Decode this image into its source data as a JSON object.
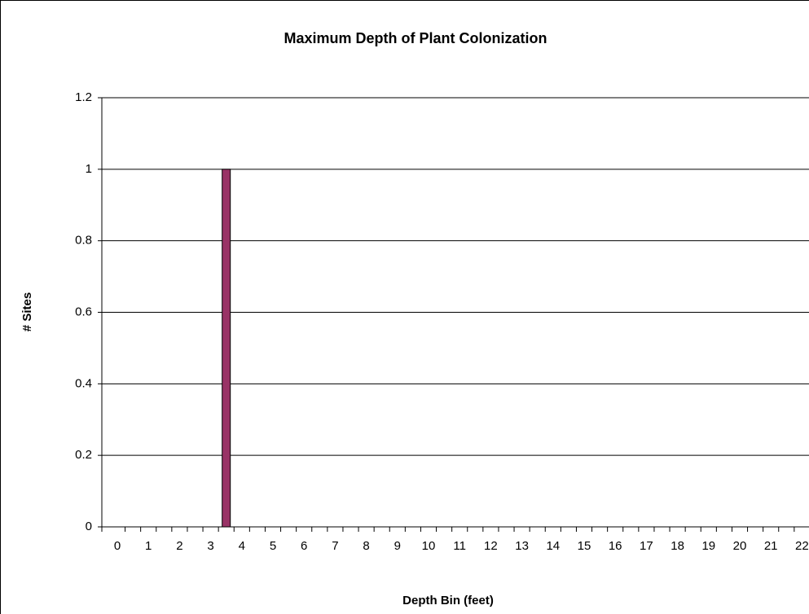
{
  "chart_data": {
    "type": "bar",
    "title": "Maximum Depth of Plant Colonization",
    "xlabel": "Depth Bin (feet)",
    "ylabel": "# Sites",
    "categories": [
      "0",
      null,
      "1",
      null,
      "2",
      null,
      "3",
      null,
      "4",
      null,
      "5",
      null,
      "6",
      null,
      "7",
      null,
      "8",
      null,
      "9",
      null,
      "10",
      null,
      "11",
      null,
      "12",
      null,
      "13",
      null,
      "14",
      null,
      "15",
      null,
      "16",
      null,
      "17",
      null,
      "18",
      null,
      "19",
      null,
      "20",
      null,
      "21",
      null,
      "22"
    ],
    "values": [
      0,
      0,
      0,
      0,
      0,
      0,
      0,
      1,
      0,
      0,
      0,
      0,
      0,
      0,
      0,
      0,
      0,
      0,
      0,
      0,
      0,
      0,
      0,
      0,
      0,
      0,
      0,
      0,
      0,
      0,
      0,
      0,
      0,
      0,
      0,
      0,
      0,
      0,
      0,
      0,
      0,
      0,
      0,
      0,
      0
    ],
    "color": "#993366",
    "ylim": [
      0,
      1.2
    ],
    "yticks": [
      0,
      0.2,
      0.4,
      0.6,
      0.8,
      1,
      1.2
    ],
    "grid": true
  }
}
